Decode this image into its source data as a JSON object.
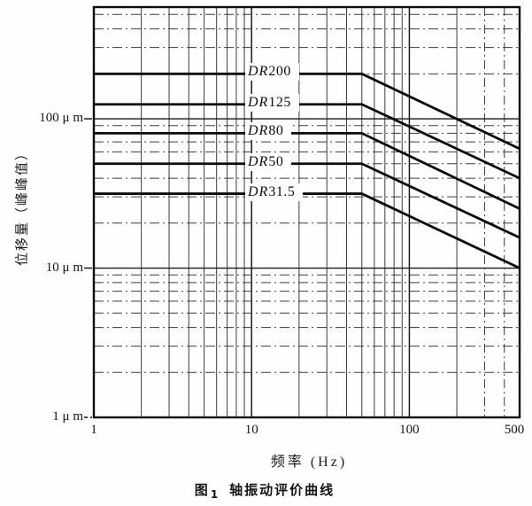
{
  "figure": {
    "caption_figure_label": "图",
    "caption_figure_number": "1",
    "caption_text": "轴振动评价曲线"
  },
  "colors": {
    "ink": "#0c0c0c",
    "grid_major": "#1a1a1a",
    "grid_minor": "#3c3c3c",
    "paper": "#fefefe"
  },
  "chart_data": {
    "type": "line",
    "title": "轴振动评价曲线",
    "xlabel": "频率  (Hz)",
    "ylabel": "位移量（峰峰值）",
    "x_scale": "log",
    "y_scale": "log",
    "xlim": [
      1,
      500
    ],
    "ylim": [
      1,
      560
    ],
    "grid": {
      "major": true,
      "minor": true,
      "minor_horizontal_style": "dash-dot",
      "dashdot_vertical_minors": [
        300,
        400
      ]
    },
    "x_ticks": [
      {
        "value": 1,
        "label": "1"
      },
      {
        "value": 10,
        "label": "10"
      },
      {
        "value": 100,
        "label": "100"
      },
      {
        "value": 500,
        "label": "500"
      }
    ],
    "y_ticks": [
      {
        "value": 100,
        "label": "100 μ m"
      },
      {
        "value": 10,
        "label": "10 μ m"
      },
      {
        "value": 1,
        "label": "1 μ m"
      }
    ],
    "series": [
      {
        "name": "DR200",
        "label_prefix": "DR",
        "label_value": "200",
        "flat_level_um": 200,
        "flat_from_hz": 1,
        "corner_hz": 50,
        "end_hz": 500,
        "end_level_um": 63,
        "rolloff_decades_per_decade": -0.5
      },
      {
        "name": "DR125",
        "label_prefix": "DR",
        "label_value": "125",
        "flat_level_um": 125,
        "flat_from_hz": 1,
        "corner_hz": 50,
        "end_hz": 500,
        "end_level_um": 40,
        "rolloff_decades_per_decade": -0.5
      },
      {
        "name": "DR80",
        "label_prefix": "DR",
        "label_value": "80",
        "flat_level_um": 80,
        "flat_from_hz": 1,
        "corner_hz": 50,
        "end_hz": 500,
        "end_level_um": 25,
        "rolloff_decades_per_decade": -0.5
      },
      {
        "name": "DR50",
        "label_prefix": "DR",
        "label_value": "50",
        "flat_level_um": 50,
        "flat_from_hz": 1,
        "corner_hz": 50,
        "end_hz": 500,
        "end_level_um": 16,
        "rolloff_decades_per_decade": -0.5
      },
      {
        "name": "DR31.5",
        "label_prefix": "DR",
        "label_value": "31.5",
        "flat_level_um": 31.5,
        "flat_from_hz": 1,
        "corner_hz": 50,
        "end_hz": 500,
        "end_level_um": 10,
        "rolloff_decades_per_decade": -0.5
      }
    ]
  }
}
